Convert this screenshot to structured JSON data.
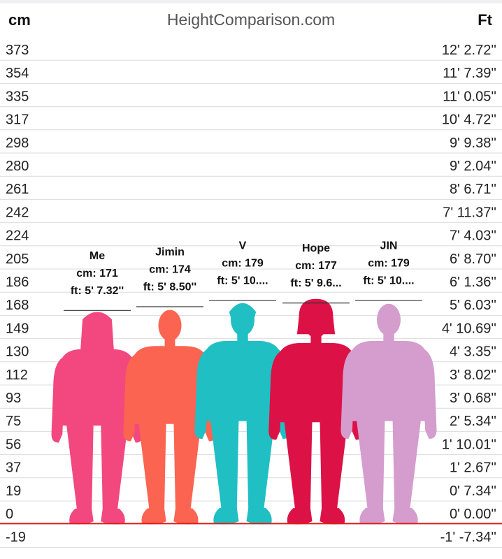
{
  "header": {
    "cm_label": "cm",
    "site": "HeightComparison.com",
    "ft_label": "Ft"
  },
  "chart_data": {
    "type": "bar",
    "y_unit_left": "cm",
    "y_unit_right": "Ft",
    "ylim": [
      -19,
      373
    ],
    "ticks": [
      {
        "cm": "373",
        "ft": "12' 2.72''"
      },
      {
        "cm": "354",
        "ft": "11' 7.39''"
      },
      {
        "cm": "335",
        "ft": "11' 0.05''"
      },
      {
        "cm": "317",
        "ft": "10' 4.72''"
      },
      {
        "cm": "298",
        "ft": "9' 9.38''"
      },
      {
        "cm": "280",
        "ft": "9' 2.04''"
      },
      {
        "cm": "261",
        "ft": "8' 6.71''"
      },
      {
        "cm": "242",
        "ft": "7' 11.37''"
      },
      {
        "cm": "224",
        "ft": "7' 4.03''"
      },
      {
        "cm": "205",
        "ft": "6' 8.70''"
      },
      {
        "cm": "186",
        "ft": "6' 1.36''"
      },
      {
        "cm": "168",
        "ft": "5' 6.03''"
      },
      {
        "cm": "149",
        "ft": "4' 10.69''"
      },
      {
        "cm": "130",
        "ft": "4' 3.35''"
      },
      {
        "cm": "112",
        "ft": "3' 8.02''"
      },
      {
        "cm": "93",
        "ft": "3' 0.68''"
      },
      {
        "cm": "75",
        "ft": "2' 5.34''"
      },
      {
        "cm": "56",
        "ft": "1' 10.01''"
      },
      {
        "cm": "37",
        "ft": "1' 2.67''"
      },
      {
        "cm": "19",
        "ft": "0' 7.34''"
      },
      {
        "cm": "0",
        "ft": "0' 0.00''"
      },
      {
        "cm": "-19",
        "ft": "-1' -7.34''"
      }
    ],
    "categories": [
      "Me",
      "Jimin",
      "V",
      "Hope",
      "JIN"
    ],
    "values": [
      171,
      174,
      179,
      177,
      179
    ],
    "people": [
      {
        "name": "Me",
        "height_cm": 171,
        "cm_text": "cm: 171",
        "ft_text": "ft: 5' 7.32''",
        "color": "#f2487f",
        "figure": "female-long-hair"
      },
      {
        "name": "Jimin",
        "height_cm": 174,
        "cm_text": "cm: 174",
        "ft_text": "ft: 5' 8.50''",
        "color": "#fb6450",
        "figure": "male"
      },
      {
        "name": "V",
        "height_cm": 179,
        "cm_text": "cm: 179",
        "ft_text": "ft: 5' 10....",
        "color": "#1fbfc4",
        "figure": "male-jacket"
      },
      {
        "name": "Hope",
        "height_cm": 177,
        "cm_text": "cm: 177",
        "ft_text": "ft: 5' 9.6...",
        "color": "#dc1146",
        "figure": "male-hoodie"
      },
      {
        "name": "JIN",
        "height_cm": 179,
        "cm_text": "cm: 179",
        "ft_text": "ft: 5' 10....",
        "color": "#d49dcd",
        "figure": "male"
      }
    ],
    "zero_line_color": "#e02020",
    "grid": true
  }
}
